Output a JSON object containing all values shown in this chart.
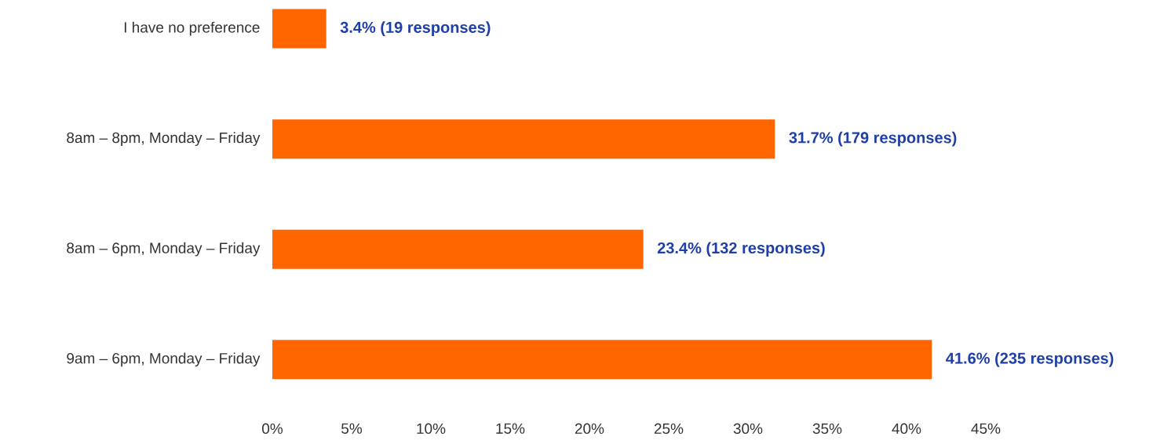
{
  "chart_data": {
    "type": "bar",
    "orientation": "horizontal",
    "categories": [
      "I have no preference",
      "8am – 8pm, Monday – Friday",
      "8am – 6pm, Monday – Friday",
      "9am – 6pm, Monday – Friday"
    ],
    "values": [
      3.4,
      31.7,
      23.4,
      41.6
    ],
    "color": "#ff6600",
    "value_labels": [
      "3.4% (19 responses)",
      "31.7% (179 responses)",
      "23.4% (132 responses)",
      "41.6% (235 responses)"
    ],
    "xlim": [
      0,
      45
    ],
    "xticks": [
      {
        "value": 0,
        "label": "0%"
      },
      {
        "value": 5,
        "label": "5%"
      },
      {
        "value": 10,
        "label": "10%"
      },
      {
        "value": 15,
        "label": "15%"
      },
      {
        "value": 20,
        "label": "20%"
      },
      {
        "value": 25,
        "label": "25%"
      },
      {
        "value": 30,
        "label": "30%"
      },
      {
        "value": 35,
        "label": "35%"
      },
      {
        "value": 40,
        "label": "40%"
      },
      {
        "value": 45,
        "label": "45%"
      }
    ],
    "grid": false
  }
}
